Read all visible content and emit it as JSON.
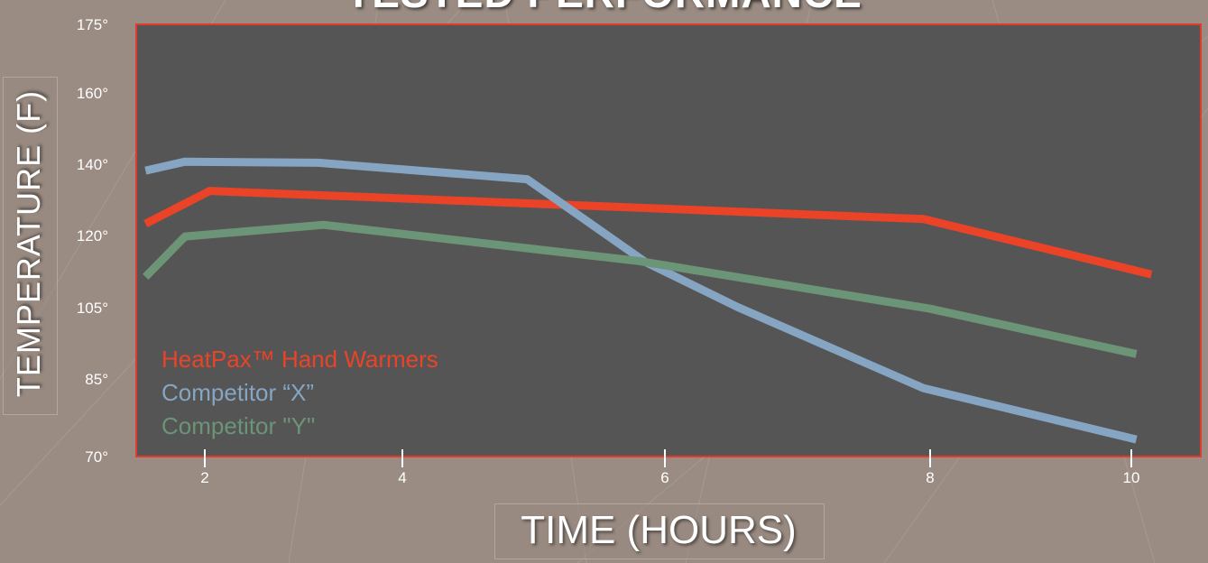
{
  "chart_data": {
    "type": "line",
    "title": "TESTED PERFORMANCE",
    "xlabel": "TIME (HOURS)",
    "ylabel": "TEMPERATURE (F)",
    "x_ticks": [
      {
        "label": "2",
        "value": 2
      },
      {
        "label": "4",
        "value": 4
      },
      {
        "label": "6",
        "value": 6
      },
      {
        "label": "8",
        "value": 8
      },
      {
        "label": "10",
        "value": 10
      }
    ],
    "y_ticks": [
      {
        "label": "70°",
        "value": 70
      },
      {
        "label": "85°",
        "value": 85
      },
      {
        "label": "105°",
        "value": 105
      },
      {
        "label": "120°",
        "value": 120
      },
      {
        "label": "140°",
        "value": 140
      },
      {
        "label": "160°",
        "value": 160
      },
      {
        "label": "175°",
        "value": 175
      }
    ],
    "grid": true,
    "legend_position": "bottom-left",
    "series": [
      {
        "name": "HeatPax™ Hand Warmers",
        "color": "#ea4327",
        "points": [
          [
            1.4,
            123.3
          ],
          [
            2.05,
            132.5
          ],
          [
            6,
            127.5
          ],
          [
            7.95,
            124.6
          ],
          [
            10.2,
            111.9
          ]
        ]
      },
      {
        "name": "Competitor “X”",
        "color": "#86a5c3",
        "points": [
          [
            1.4,
            138.2
          ],
          [
            1.8,
            140.7
          ],
          [
            3.15,
            140.4
          ],
          [
            4.95,
            135.8
          ],
          [
            5.85,
            114.5
          ],
          [
            6.55,
            105.1
          ],
          [
            7.95,
            83.2
          ],
          [
            10.05,
            73.3
          ]
        ]
      },
      {
        "name": "Competitor \"Y\"",
        "color": "#6c9476",
        "points": [
          [
            1.4,
            111.4
          ],
          [
            1.8,
            119.8
          ],
          [
            3.2,
            123.0
          ],
          [
            5.8,
            114.7
          ],
          [
            8,
            104.7
          ],
          [
            10.05,
            92.0
          ]
        ]
      }
    ]
  }
}
